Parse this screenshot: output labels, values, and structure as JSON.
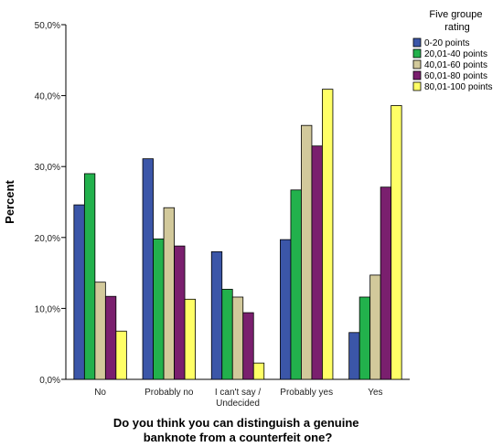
{
  "chart_data": {
    "type": "bar",
    "categories": [
      "No",
      "Probably no",
      "I can't say / Undecided",
      "Probably yes",
      "Yes"
    ],
    "category_lines": [
      [
        "No"
      ],
      [
        "Probably no"
      ],
      [
        "I can't say /",
        "Undecided"
      ],
      [
        "Probably yes"
      ],
      [
        "Yes"
      ]
    ],
    "series": [
      {
        "name": "0-20 points",
        "color": "#3b56a8",
        "values": [
          24.6,
          31.1,
          18.0,
          19.7,
          6.6
        ]
      },
      {
        "name": "20,01-40 points",
        "color": "#22b14c",
        "values": [
          29.0,
          19.8,
          12.7,
          26.7,
          11.6
        ]
      },
      {
        "name": "40,01-60 points",
        "color": "#d2c99b",
        "values": [
          13.7,
          24.2,
          11.6,
          35.8,
          14.7
        ]
      },
      {
        "name": "60,01-80 points",
        "color": "#7a1f6e",
        "values": [
          11.7,
          18.8,
          9.4,
          32.9,
          27.1
        ]
      },
      {
        "name": "80,01-100 points",
        "color": "#ffff66",
        "values": [
          6.8,
          11.3,
          2.3,
          40.9,
          38.6
        ]
      }
    ],
    "ylim": [
      0,
      50
    ],
    "yticks": [
      "0,0%",
      "10,0%",
      "20,0%",
      "30,0%",
      "40,0%",
      "50,0%"
    ],
    "ylabel": "Percent",
    "xlabel_lines": [
      "Do you think you can distinguish a genuine",
      "banknote from a counterfeit one?"
    ],
    "legend": {
      "title_lines": [
        "Five groupe",
        "rating"
      ],
      "placement": "top-right"
    }
  }
}
